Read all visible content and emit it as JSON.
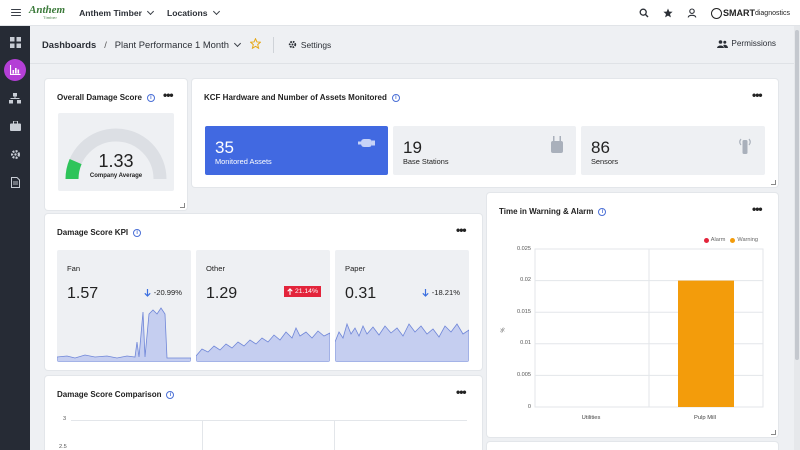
{
  "topbar": {
    "logo_name": "Anthem",
    "logo_sub": "Timber",
    "org_label": "Anthem Timber",
    "locations_label": "Locations",
    "brand_smart": "SMART",
    "brand_diag": "diagnostics"
  },
  "breadcrumb": {
    "root": "Dashboards",
    "separator": "/",
    "current": "Plant Performance 1 Month",
    "settings_label": "Settings",
    "permissions_label": "Permissions"
  },
  "damage_score": {
    "title": "Overall Damage Score",
    "value": "1.33",
    "subtitle": "Company Average",
    "gauge_fraction": 0.13
  },
  "kcf": {
    "title": "KCF Hardware and Number of Assets Monitored",
    "tiles": [
      {
        "value": "35",
        "label": "Monitored Assets",
        "icon": "motor-icon"
      },
      {
        "value": "19",
        "label": "Base Stations",
        "icon": "base-station-icon"
      },
      {
        "value": "86",
        "label": "Sensors",
        "icon": "sensor-icon"
      }
    ]
  },
  "kpi": {
    "title": "Damage Score KPI",
    "items": [
      {
        "name": "Fan",
        "value": "1.57",
        "change": "-20.99%",
        "direction": "down"
      },
      {
        "name": "Other",
        "value": "1.29",
        "change": "21.14%",
        "direction": "up"
      },
      {
        "name": "Paper",
        "value": "0.31",
        "change": "-18.21%",
        "direction": "down"
      }
    ]
  },
  "comparison": {
    "title": "Damage Score Comparison",
    "ticks": [
      "3",
      "2.5"
    ]
  },
  "warning_alarm": {
    "title": "Time in Warning & Alarm",
    "chart_data": {
      "type": "bar",
      "categories": [
        "Utilities",
        "Pulp Mill"
      ],
      "series": [
        {
          "name": "Alarm",
          "values": [
            0,
            0
          ],
          "color": "#e3243b"
        },
        {
          "name": "Warning",
          "values": [
            0,
            0.02
          ],
          "color": "#f39c0b"
        }
      ],
      "ylabel": "%",
      "ylim": [
        0,
        0.025
      ],
      "yticks": [
        "0",
        "0.005",
        "0.01",
        "0.015",
        "0.02",
        "0.025"
      ],
      "legend": "top-right",
      "grid": true
    }
  },
  "colors": {
    "accent": "#4169e1",
    "sidebar_active": "#b43fd6",
    "gauge_green": "#2ec45a",
    "alarm": "#e3243b",
    "warning": "#f39c0b"
  }
}
